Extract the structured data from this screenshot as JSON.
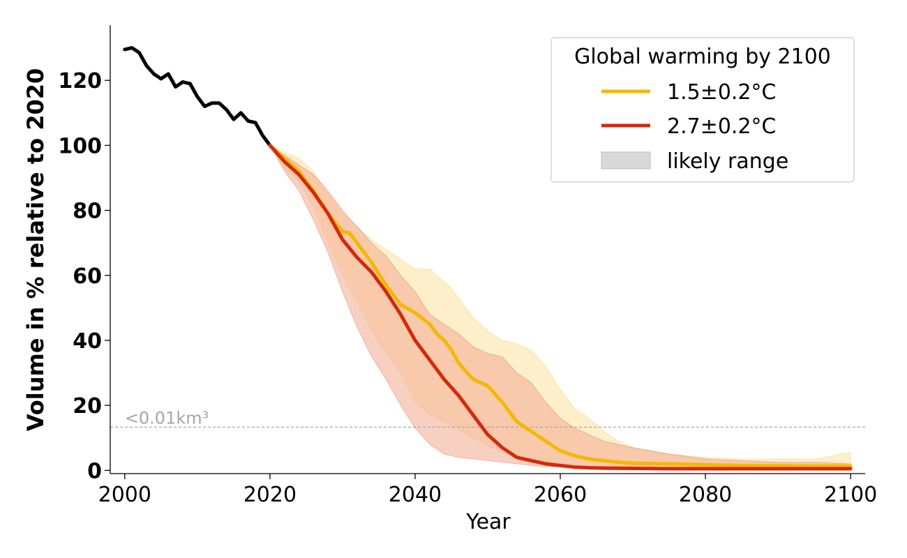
{
  "chart_data": {
    "type": "line",
    "xlabel": "Year",
    "ylabel": "Volume in % relative to 2020",
    "xlim": [
      1998,
      2102
    ],
    "ylim": [
      -1,
      137
    ],
    "xticks": [
      2000,
      2020,
      2040,
      2060,
      2080,
      2100
    ],
    "yticks": [
      0,
      20,
      40,
      60,
      80,
      100,
      120
    ],
    "grid": false,
    "legend": {
      "title": "Global warming by 2100",
      "placement": "top-right",
      "entries": [
        {
          "label": "1.5±0.2°C",
          "kind": "line",
          "color": "#f5b800"
        },
        {
          "label": "2.7±0.2°C",
          "kind": "line",
          "color": "#d42a0a"
        },
        {
          "label": "likely range",
          "kind": "patch",
          "color": "#d9d9d9"
        }
      ]
    },
    "threshold": {
      "y": 13.3,
      "label": "<0.01km³",
      "color": "#a6a6a6"
    },
    "observed": {
      "color": "#000000",
      "x": [
        2000,
        2001,
        2002,
        2003,
        2004,
        2005,
        2006,
        2007,
        2008,
        2009,
        2010,
        2011,
        2012,
        2013,
        2014,
        2015,
        2016,
        2017,
        2018,
        2019,
        2020
      ],
      "y": [
        129.5,
        130,
        128.5,
        124.5,
        122,
        120.5,
        122,
        118,
        119.5,
        119,
        115,
        112,
        113,
        113,
        111,
        108,
        110,
        107.5,
        107,
        103,
        100
      ]
    },
    "series": [
      {
        "name": "1.5±0.2°C",
        "color": "#f5b800",
        "band_color": "#fde2a0",
        "x": [
          2020,
          2022,
          2024,
          2026,
          2028,
          2030,
          2031,
          2032,
          2034,
          2036,
          2038,
          2040,
          2042,
          2043,
          2044,
          2045,
          2046,
          2048,
          2050,
          2052,
          2054,
          2056,
          2058,
          2060,
          2062,
          2064,
          2066,
          2068,
          2070,
          2075,
          2080,
          2085,
          2090,
          2095,
          2100
        ],
        "y": [
          100,
          96,
          92,
          86,
          79,
          73.5,
          73,
          70,
          64,
          57,
          51,
          48.5,
          45,
          42,
          40,
          37,
          33,
          28,
          26,
          21,
          15,
          12,
          9,
          6,
          4.5,
          3.5,
          3,
          2.5,
          2.2,
          2,
          1.7,
          1.5,
          1.4,
          1.3,
          1.3
        ],
        "lower": [
          100,
          93,
          89,
          81,
          70,
          60,
          56,
          52,
          43,
          36,
          30,
          21,
          17,
          16,
          15,
          14,
          12.5,
          10,
          7.5,
          5.5,
          4,
          3,
          2.5,
          2,
          1.5,
          1.2,
          1,
          0.9,
          0.8,
          0.7,
          0.6,
          0.6,
          0.5,
          0.5,
          0.5
        ],
        "upper": [
          100,
          98,
          96,
          92,
          85,
          79,
          77,
          75,
          71,
          68,
          65,
          62,
          62,
          60,
          58,
          56,
          53,
          47,
          43,
          40,
          39,
          37,
          32,
          25,
          19,
          16,
          12,
          9,
          7,
          5,
          4,
          3.5,
          3.5,
          3.5,
          5.5
        ]
      },
      {
        "name": "2.7±0.2°C",
        "color": "#d42a0a",
        "band_color": "#f2a990",
        "x": [
          2020,
          2022,
          2024,
          2026,
          2028,
          2030,
          2032,
          2034,
          2036,
          2038,
          2040,
          2042,
          2044,
          2046,
          2048,
          2050,
          2052,
          2054,
          2056,
          2058,
          2060,
          2062,
          2064,
          2066,
          2070,
          2075,
          2080,
          2085,
          2090,
          2095,
          2100
        ],
        "y": [
          100,
          95,
          91,
          85.5,
          79,
          71,
          65.5,
          61,
          55,
          48,
          40,
          34,
          28,
          23,
          17,
          11,
          7,
          4,
          3,
          2,
          1.5,
          1,
          0.8,
          0.7,
          0.6,
          0.5,
          0.5,
          0.5,
          0.5,
          0.5,
          0.5
        ],
        "lower": [
          100,
          92,
          86,
          77,
          67,
          55,
          44,
          35,
          28,
          20,
          13,
          8,
          5,
          4,
          3.5,
          3,
          2.5,
          2,
          1.5,
          1.2,
          1,
          0.8,
          0.7,
          0.6,
          0.5,
          0.4,
          0.4,
          0.3,
          0.3,
          0.3,
          0.3
        ],
        "upper": [
          100,
          97,
          94,
          91,
          86,
          80,
          75,
          70,
          66,
          60,
          55,
          48,
          45,
          42,
          38,
          36,
          35,
          30,
          27,
          21,
          16,
          13,
          11,
          9,
          7,
          5,
          3.5,
          3,
          2.5,
          2.5,
          2
        ]
      }
    ]
  }
}
